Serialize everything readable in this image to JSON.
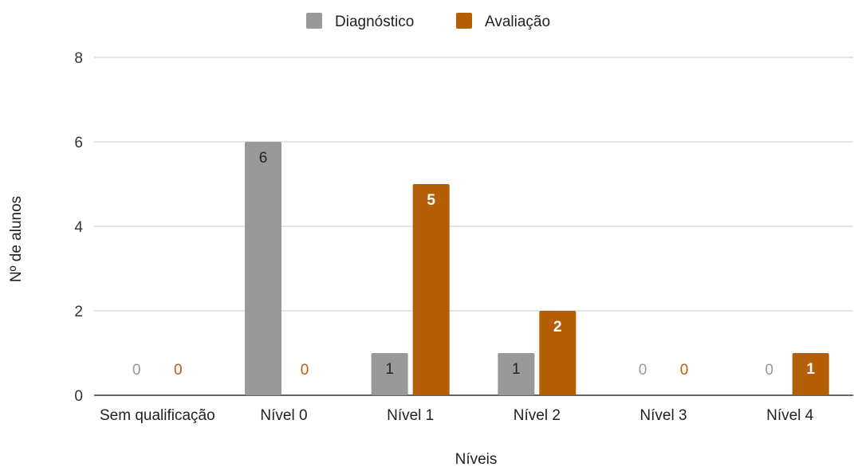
{
  "chart_data": {
    "type": "bar",
    "title": "",
    "xlabel": "Níveis",
    "ylabel": "Nº de alunos",
    "categories": [
      "Sem qualificação",
      "Nível 0",
      "Nível 1",
      "Nível 2",
      "Nível 3",
      "Nível 4"
    ],
    "series": [
      {
        "name": "Diagnóstico",
        "color": "#999999",
        "values": [
          0,
          6,
          1,
          1,
          0,
          0
        ]
      },
      {
        "name": "Avaliação",
        "color": "#b45f06",
        "values": [
          0,
          0,
          5,
          2,
          0,
          1
        ]
      }
    ],
    "ylim": [
      0,
      8
    ],
    "yticks": [
      0,
      2,
      4,
      6,
      8
    ],
    "grid": true,
    "legend_position": "top-center",
    "data_labels": true
  }
}
